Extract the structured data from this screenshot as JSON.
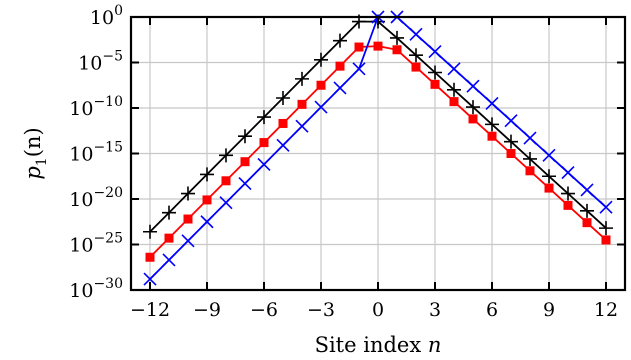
{
  "chart_data": {
    "type": "line",
    "title": "",
    "xlabel": "Site index",
    "xlabel_var": "n",
    "ylabel_var": "p",
    "ylabel_sub": "1",
    "ylabel_arg": "(n)",
    "xlim": [
      -13,
      13
    ],
    "ylim": [
      1e-30,
      1
    ],
    "yscale": "log",
    "grid": true,
    "x_ticks": [
      -12,
      -9,
      -6,
      -3,
      0,
      3,
      6,
      9,
      12
    ],
    "x_tick_labels": [
      "−12",
      "−9",
      "−6",
      "−3",
      "0",
      "3",
      "6",
      "9",
      "12"
    ],
    "y_ticks": [
      1e-30,
      1e-25,
      1e-20,
      1e-15,
      1e-10,
      1e-05,
      1
    ],
    "y_tick_base": "10",
    "y_tick_exponents": [
      "−30",
      "−25",
      "−20",
      "−15",
      "−10",
      "−5",
      "0"
    ],
    "x": [
      -12,
      -11,
      -10,
      -9,
      -8,
      -7,
      -6,
      -5,
      -4,
      -3,
      -2,
      -1,
      0,
      1,
      2,
      3,
      4,
      5,
      6,
      7,
      8,
      9,
      10,
      11,
      12
    ],
    "series": [
      {
        "color": "#000000",
        "marker": "plus",
        "log10_values": [
          -23.6,
          -21.5,
          -19.4,
          -17.3,
          -15.2,
          -13.1,
          -11.0,
          -8.9,
          -6.8,
          -4.7,
          -2.6,
          -0.5,
          -0.5,
          -2.3,
          -4.2,
          -6.1,
          -8.0,
          -9.9,
          -11.8,
          -13.7,
          -15.6,
          -17.5,
          -19.4,
          -21.3,
          -23.2
        ]
      },
      {
        "color": "#ff0000",
        "marker": "square",
        "log10_values": [
          -26.4,
          -24.3,
          -22.2,
          -20.1,
          -18.0,
          -15.9,
          -13.8,
          -11.7,
          -9.6,
          -7.5,
          -5.4,
          -3.3,
          -3.2,
          -3.6,
          -5.5,
          -7.4,
          -9.3,
          -11.2,
          -13.1,
          -15.0,
          -16.9,
          -18.8,
          -20.7,
          -22.6,
          -24.5
        ]
      },
      {
        "color": "#0000ff",
        "marker": "cross",
        "log10_values": [
          -28.8,
          -26.7,
          -24.6,
          -22.5,
          -20.4,
          -18.3,
          -16.2,
          -14.1,
          -12.0,
          -9.9,
          -7.8,
          -5.7,
          0.0,
          0.0,
          -1.9,
          -3.8,
          -5.7,
          -7.6,
          -9.5,
          -11.4,
          -13.3,
          -15.2,
          -17.1,
          -19.0,
          -20.9
        ]
      }
    ]
  }
}
